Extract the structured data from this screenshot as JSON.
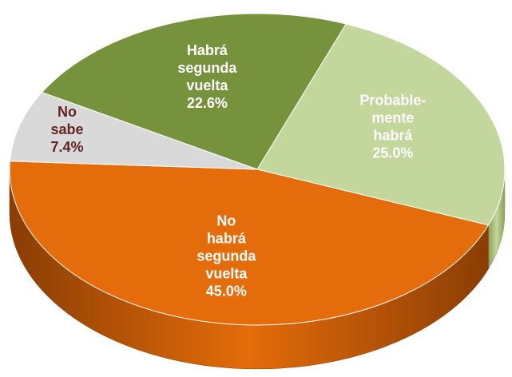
{
  "chart_data": {
    "type": "pie",
    "categories": [
      "Probable-mente habrá",
      "No habrá segunda vuelta",
      "No sabe",
      "Habrá segunda vuelta"
    ],
    "values": [
      25.0,
      45.0,
      7.4,
      22.6
    ],
    "value_labels": [
      "25.0%",
      "45.0%",
      "7.4%",
      "22.6%"
    ],
    "colors": [
      "#c3d69b",
      "#e46c0a",
      "#d9d9d9",
      "#76923c"
    ],
    "side_colors": [
      "#8aa05a",
      "#8a3d04",
      "#9a9a9a",
      "#4f6228"
    ],
    "label_colors": [
      "#ffffff",
      "#ffffff",
      "#632523",
      "#ffffff"
    ]
  }
}
